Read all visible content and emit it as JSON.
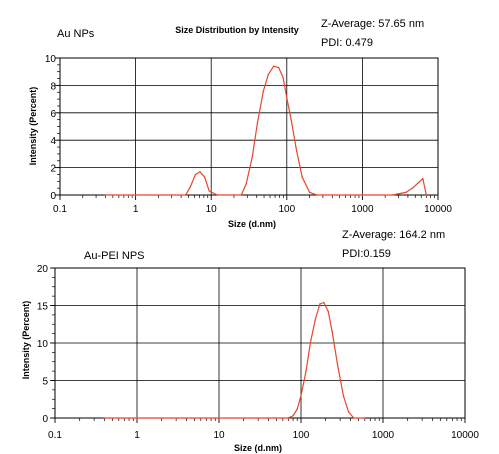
{
  "chart_data": [
    {
      "type": "line",
      "title": "Size Distribution by Intensity",
      "sample_label": "Au NPs",
      "annotation_lines": [
        "Z-Average: 57.65 nm",
        "PDI: 0.479"
      ],
      "xlabel": "Size (d.nm)",
      "ylabel": "Intensity (Percent)",
      "x_scale": "log",
      "xlim": [
        0.1,
        10000
      ],
      "ylim": [
        0,
        10
      ],
      "x_ticks": [
        "0.1",
        "1",
        "10",
        "100",
        "1000",
        "10000"
      ],
      "y_ticks": [
        "0",
        "2",
        "4",
        "6",
        "8",
        "10"
      ],
      "grid": true,
      "color": "#e8462a",
      "series": [
        {
          "x": [
            0.4,
            1,
            3,
            4.6,
            5.3,
            6.2,
            7.1,
            8.2,
            9.4,
            12,
            20,
            25,
            29,
            35,
            41,
            49,
            57,
            67,
            78,
            89,
            100,
            115,
            135,
            160,
            200,
            250,
            300,
            400,
            1000,
            2500,
            3800,
            4600,
            5500,
            6300,
            7000
          ],
          "y": [
            0,
            0,
            0,
            0,
            0.6,
            1.5,
            1.7,
            1.3,
            0.3,
            0,
            0,
            0,
            0.8,
            2.8,
            5.3,
            7.6,
            8.8,
            9.4,
            9.3,
            8.6,
            7.1,
            5.4,
            3.2,
            1.3,
            0.2,
            0,
            0,
            0,
            0,
            0,
            0.2,
            0.5,
            0.9,
            1.2,
            0
          ]
        }
      ]
    },
    {
      "type": "line",
      "sample_label": "Au-PEI NPS",
      "annotation_lines": [
        "Z-Average: 164.2 nm",
        "PDI:0.159"
      ],
      "xlabel": "Size (d.nm)",
      "ylabel": "Intensity (Percent)",
      "x_scale": "log",
      "xlim": [
        0.1,
        10000
      ],
      "ylim": [
        0,
        20
      ],
      "x_ticks": [
        "0.1",
        "1",
        "10",
        "100",
        "1000",
        "10000"
      ],
      "y_ticks": [
        "0",
        "5",
        "10",
        "15",
        "20"
      ],
      "grid": true,
      "color": "#e8462a",
      "series": [
        {
          "x": [
            0.4,
            1,
            10,
            50,
            70,
            80,
            90,
            100,
            115,
            130,
            150,
            170,
            190,
            215,
            240,
            280,
            330,
            380,
            440,
            600
          ],
          "y": [
            0,
            0,
            0,
            0,
            0,
            0.3,
            1.2,
            3.0,
            6.2,
            10,
            13.2,
            15.2,
            15.4,
            14.2,
            11.5,
            7,
            2.9,
            0.8,
            0,
            0
          ]
        }
      ]
    }
  ]
}
